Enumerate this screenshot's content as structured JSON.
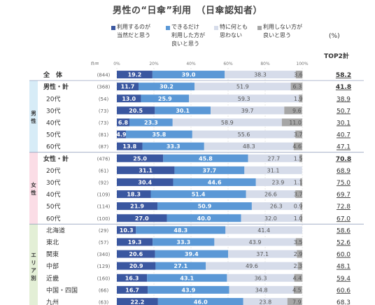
{
  "title": "男性の“日傘”利用　（日傘認知者）",
  "legend": [
    {
      "label": "利用するのが\n当然だと思う",
      "color": "#3a57a0"
    },
    {
      "label": "できるだけ\n利用した方が\n良いと思う",
      "color": "#5b98d6"
    },
    {
      "label": "特に何とも\n思わない",
      "color": "#d6dcea"
    },
    {
      "label": "利用しない方が\n良いと思う",
      "color": "#a6a6a6"
    }
  ],
  "unit": "(%)",
  "top2_header": "TOP2計",
  "n_header": "n=",
  "groups": [
    {
      "label": "男\n性",
      "color": "#d7ecf7"
    },
    {
      "label": "女\n性",
      "color": "#fbdde6"
    },
    {
      "label": "エ\nリ\nア\n別",
      "color": "#e3efd6"
    }
  ],
  "chart_data": {
    "type": "bar",
    "orientation": "horizontal",
    "stacked": true,
    "xlim": [
      0,
      100
    ],
    "x_ticks": [
      "0%",
      "20%",
      "40%",
      "60%",
      "80%",
      "100%"
    ],
    "series": [
      {
        "name": "利用するのが当然だと思う",
        "color": "#3a57a0"
      },
      {
        "name": "できるだけ利用した方が良いと思う",
        "color": "#5b98d6"
      },
      {
        "name": "特に何とも思わない",
        "color": "#d6dcea"
      },
      {
        "name": "利用しない方が良いと思う",
        "color": "#a6a6a6"
      }
    ],
    "rows": [
      {
        "label": "全　体",
        "n": "(844)",
        "values": [
          19.2,
          39.0,
          38.3,
          3.6
        ],
        "top2": "58.2",
        "bold": true
      },
      {
        "label": "男性・計",
        "n": "(368)",
        "values": [
          11.7,
          30.2,
          51.9,
          6.3
        ],
        "top2": "41.8",
        "bold": true
      },
      {
        "label": "20代",
        "n": "(54)",
        "values": [
          13.0,
          25.9,
          59.3,
          1.9
        ],
        "top2": "38.9"
      },
      {
        "label": "30代",
        "n": "(73)",
        "values": [
          20.5,
          30.1,
          39.7,
          9.6
        ],
        "top2": "50.7"
      },
      {
        "label": "40代",
        "n": "(73)",
        "values": [
          6.8,
          23.3,
          58.9,
          11.0
        ],
        "top2": "30.1"
      },
      {
        "label": "50代",
        "n": "(81)",
        "values": [
          4.9,
          35.8,
          55.6,
          3.7
        ],
        "top2": "40.7"
      },
      {
        "label": "60代",
        "n": "(87)",
        "values": [
          13.8,
          33.3,
          48.3,
          4.6
        ],
        "top2": "47.1"
      },
      {
        "label": "女性・計",
        "n": "(476)",
        "values": [
          25.0,
          45.8,
          27.7,
          1.5
        ],
        "top2": "70.8",
        "bold": true
      },
      {
        "label": "20代",
        "n": "(61)",
        "values": [
          31.1,
          37.7,
          31.1,
          0.0
        ],
        "top2": "68.9"
      },
      {
        "label": "30代",
        "n": "(92)",
        "values": [
          30.4,
          44.6,
          23.9,
          1.1
        ],
        "top2": "75.0"
      },
      {
        "label": "40代",
        "n": "(109)",
        "values": [
          18.3,
          51.4,
          26.6,
          3.7
        ],
        "top2": "69.7"
      },
      {
        "label": "50代",
        "n": "(114)",
        "values": [
          21.9,
          50.9,
          26.3,
          0.9
        ],
        "top2": "72.8"
      },
      {
        "label": "60代",
        "n": "(100)",
        "values": [
          27.0,
          40.0,
          32.0,
          1.0
        ],
        "top2": "67.0"
      },
      {
        "label": "北海道",
        "n": "(29)",
        "values": [
          10.3,
          48.3,
          41.4,
          0.0
        ],
        "top2": "58.6"
      },
      {
        "label": "東北",
        "n": "(57)",
        "values": [
          19.3,
          33.3,
          43.9,
          3.5
        ],
        "top2": "52.6"
      },
      {
        "label": "関東",
        "n": "(340)",
        "values": [
          20.6,
          39.4,
          37.1,
          2.9
        ],
        "top2": "60.0"
      },
      {
        "label": "中部",
        "n": "(129)",
        "values": [
          20.9,
          27.1,
          49.6,
          2.3
        ],
        "top2": "48.1"
      },
      {
        "label": "近畿",
        "n": "(160)",
        "values": [
          16.3,
          43.1,
          36.3,
          4.4
        ],
        "top2": "59.4"
      },
      {
        "label": "中国・四国",
        "n": "(66)",
        "values": [
          16.7,
          43.9,
          34.8,
          4.5
        ],
        "top2": "60.6"
      },
      {
        "label": "九州",
        "n": "(63)",
        "values": [
          22.2,
          46.0,
          23.8,
          7.9
        ],
        "top2": "68.3"
      }
    ]
  }
}
